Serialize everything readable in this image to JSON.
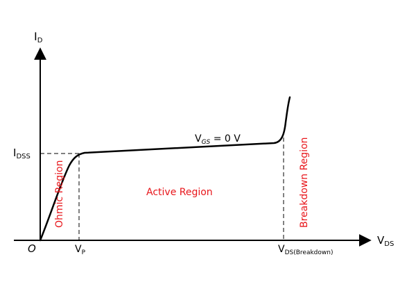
{
  "axes": {
    "y_main": "I",
    "y_sub": "D",
    "x_main": "V",
    "x_sub": "DS",
    "origin": "O"
  },
  "markers": {
    "idss_main": "I",
    "idss_sub": "DSS",
    "vp_main": "V",
    "vp_sub": "P",
    "vds_bd_main": "V",
    "vds_bd_sub": "DS(Breakdown)"
  },
  "curve_label": {
    "main": "V",
    "sub": "GS",
    "rest": " = 0 V"
  },
  "regions": {
    "ohmic": "Ohmic Region",
    "active": "Active Region",
    "breakdown": "Breakdown Region"
  },
  "colors": {
    "region_text": "#e8161b",
    "lines": "#000000"
  }
}
